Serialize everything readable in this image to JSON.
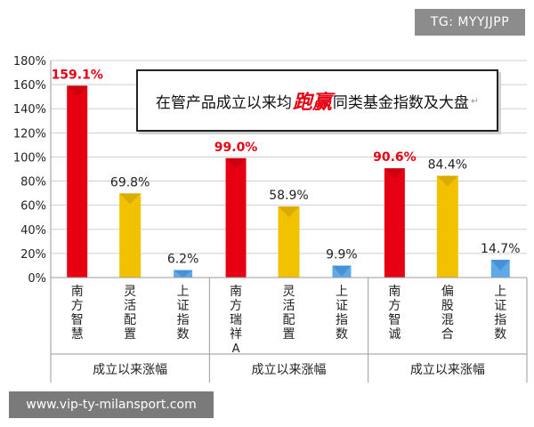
{
  "watermarks": {
    "top": "TG: MYYJJPP",
    "bottom": "www.vip-ty-milansport.com"
  },
  "title": {
    "prefix": "在管产品成立以来均",
    "highlight": "跑赢",
    "suffix": "同类基金指数及大盘",
    "mark": "↵"
  },
  "colors": {
    "red": "#e60012",
    "yellow": "#f2c200",
    "blue": "#5fa9e6"
  },
  "chart_data": {
    "type": "bar",
    "ylim": [
      0,
      180
    ],
    "yticks": [
      0,
      20,
      40,
      60,
      80,
      100,
      120,
      140,
      160,
      180
    ],
    "tick_labels": [
      "0%",
      "20%",
      "40%",
      "60%",
      "80%",
      "100%",
      "120%",
      "140%",
      "160%",
      "180%"
    ],
    "groups": [
      {
        "label": "成立以来涨幅",
        "bars": [
          {
            "name": "南方智慧",
            "value": 159.1,
            "label": "159.1%",
            "color": "red"
          },
          {
            "name": "灵活配置",
            "value": 69.8,
            "label": "69.8%",
            "color": "yellow"
          },
          {
            "name": "上证指数",
            "value": 6.2,
            "label": "6.2%",
            "color": "blue"
          }
        ]
      },
      {
        "label": "成立以来涨幅",
        "bars": [
          {
            "name": "南方瑞祥A",
            "value": 99.0,
            "label": "99.0%",
            "color": "red"
          },
          {
            "name": "灵活配置",
            "value": 58.9,
            "label": "58.9%",
            "color": "yellow"
          },
          {
            "name": "上证指数",
            "value": 9.9,
            "label": "9.9%",
            "color": "blue"
          }
        ]
      },
      {
        "label": "成立以来涨幅",
        "bars": [
          {
            "name": "南方智诚",
            "value": 90.6,
            "label": "90.6%",
            "color": "red"
          },
          {
            "name": "偏股混合",
            "value": 84.4,
            "label": "84.4%",
            "color": "yellow"
          },
          {
            "name": "上证指数",
            "value": 14.7,
            "label": "14.7%",
            "color": "blue"
          }
        ]
      }
    ]
  }
}
